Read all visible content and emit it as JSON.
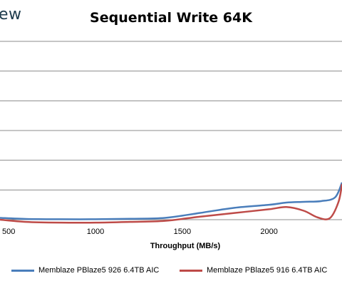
{
  "header": {
    "logo_text": "ew"
  },
  "chart_data": {
    "type": "line",
    "title": "Sequential Write 64K",
    "xlabel": "Throughput (MB/s)",
    "ylabel": "",
    "xlim": [
      450,
      2420
    ],
    "ylim": [
      0,
      12
    ],
    "x_ticks": [
      "500",
      "1000",
      "1500",
      "2000"
    ],
    "x_tick_values": [
      500,
      1000,
      1500,
      2000
    ],
    "y_gridlines": [
      2,
      4,
      6,
      8,
      10,
      12
    ],
    "grid": true,
    "legend_position": "bottom",
    "series": [
      {
        "name": "Memblaze PBlaze5 926 6.4TB AIC",
        "color": "#4a7ebb",
        "x": [
          450,
          600,
          800,
          1000,
          1200,
          1400,
          1600,
          1800,
          2000,
          2100,
          2200,
          2300,
          2380,
          2420
        ],
        "y": [
          0.12,
          0.05,
          0.03,
          0.03,
          0.06,
          0.12,
          0.45,
          0.8,
          1.0,
          1.15,
          1.2,
          1.25,
          1.5,
          2.5
        ]
      },
      {
        "name": "Memblaze PBlaze5 916 6.4TB AIC",
        "color": "#be4b48",
        "x": [
          450,
          600,
          800,
          1000,
          1200,
          1400,
          1600,
          1800,
          2000,
          2100,
          2200,
          2280,
          2350,
          2400,
          2420
        ],
        "y": [
          0.0,
          -0.15,
          -0.2,
          -0.2,
          -0.15,
          -0.08,
          0.2,
          0.45,
          0.7,
          0.85,
          0.6,
          0.15,
          0.1,
          1.2,
          2.4
        ]
      }
    ]
  }
}
